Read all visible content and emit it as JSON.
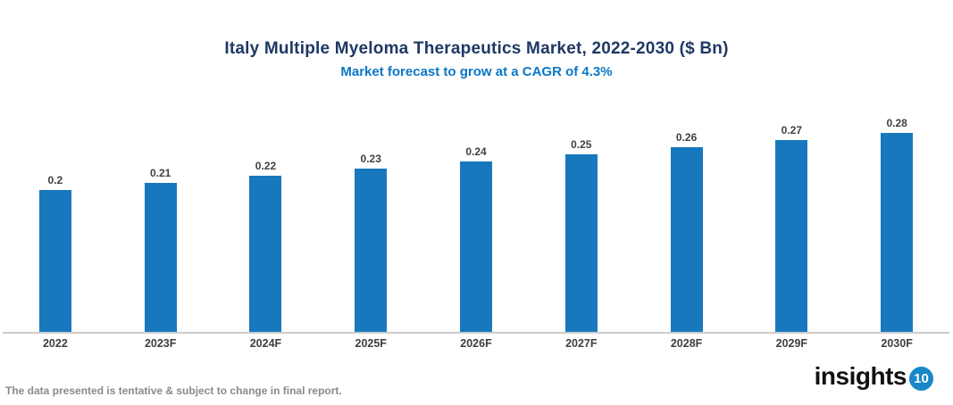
{
  "header": {
    "title": "Italy Multiple Myeloma Therapeutics Market, 2022-2030 ($ Bn)",
    "subtitle": "Market forecast to grow at a CAGR of 4.3%"
  },
  "chart_data": {
    "type": "bar",
    "title": "Italy Multiple Myeloma Therapeutics Market, 2022-2030 ($ Bn)",
    "subtitle": "Market forecast to grow at a CAGR of 4.3%",
    "categories": [
      "2022",
      "2023F",
      "2024F",
      "2025F",
      "2026F",
      "2027F",
      "2028F",
      "2029F",
      "2030F"
    ],
    "values": [
      0.2,
      0.21,
      0.22,
      0.23,
      0.24,
      0.25,
      0.26,
      0.27,
      0.28
    ],
    "value_labels": [
      "0.2",
      "0.21",
      "0.22",
      "0.23",
      "0.24",
      "0.25",
      "0.26",
      "0.27",
      "0.28"
    ],
    "xlabel": "",
    "ylabel": "",
    "ylim": [
      0,
      0.3
    ],
    "grid": false,
    "legend_position": "none",
    "data_labels": true,
    "bar_color": "#1878BE",
    "value_label_color": "#404040",
    "category_label_color": "#3F3F3F",
    "axis_line_color": "#CBCBCB"
  },
  "footer": {
    "disclaimer": "The data presented is tentative & subject to change in final report."
  },
  "logo": {
    "text": "insights",
    "badge": "10",
    "badge_color": "#1787C9"
  },
  "colors": {
    "title": "#1F3864",
    "subtitle": "#0B77C5"
  }
}
